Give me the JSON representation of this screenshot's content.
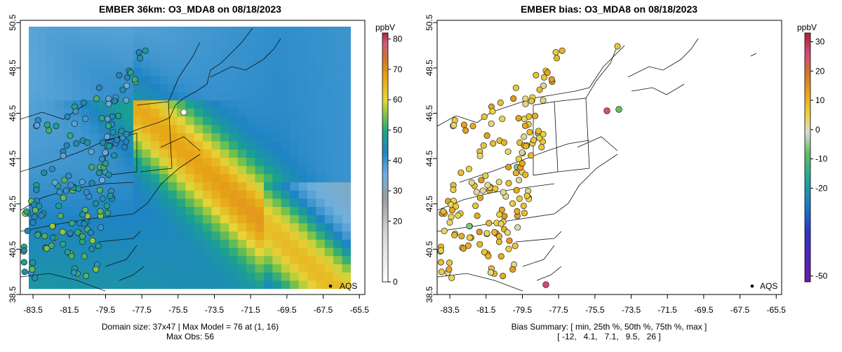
{
  "chart_data": [
    {
      "type": "heatmap",
      "title": "EMBER 36km: O3_MDA8 on 08/18/2023",
      "x_ticks": [
        "-83.5",
        "-81.5",
        "-79.5",
        "-77.5",
        "-75.5",
        "-73.5",
        "-71.5",
        "-69.5",
        "-67.5",
        "-65.5"
      ],
      "y_ticks": [
        "38.5",
        "40.5",
        "42.5",
        "44.5",
        "46.5",
        "48.5",
        "50.5"
      ],
      "xlim": [
        -84.2,
        -65.2
      ],
      "ylim": [
        38.5,
        50.6
      ],
      "colorbar": {
        "label": "ppbV",
        "ticks": [
          "0",
          "20",
          "30",
          "40",
          "50",
          "60",
          "70",
          "80"
        ],
        "range": [
          0,
          82
        ]
      },
      "legend": "AQS",
      "footer": [
        "Domain size: 37x47 | Max Model = 76 at (1, 16)",
        "Max Obs: 56"
      ]
    },
    {
      "type": "scatter",
      "title": "EMBER bias: O3_MDA8 on 08/18/2023",
      "x_ticks": [
        "-83.5",
        "-81.5",
        "-79.5",
        "-77.5",
        "-75.5",
        "-73.5",
        "-71.5",
        "-69.5",
        "-67.5",
        "-65.5"
      ],
      "y_ticks": [
        "38.5",
        "40.5",
        "42.5",
        "44.5",
        "46.5",
        "48.5",
        "50.5"
      ],
      "xlim": [
        -84.2,
        -65.2
      ],
      "ylim": [
        38.5,
        50.6
      ],
      "colorbar": {
        "label": "ppbV",
        "ticks": [
          "-50",
          "-20",
          "-10",
          "0",
          "10",
          "20",
          "30"
        ],
        "range": [
          -52,
          33
        ]
      },
      "legend": "AQS",
      "footer": [
        "Bias Summary: [ min, 25th %, 50th %, 75th %, max ]",
        "[ -12,   4.1,   7.1,   9.5,   26 ]"
      ],
      "bias_summary": {
        "min": -12,
        "p25": 4.1,
        "p50": 7.1,
        "p75": 9.5,
        "max": 26
      }
    }
  ]
}
